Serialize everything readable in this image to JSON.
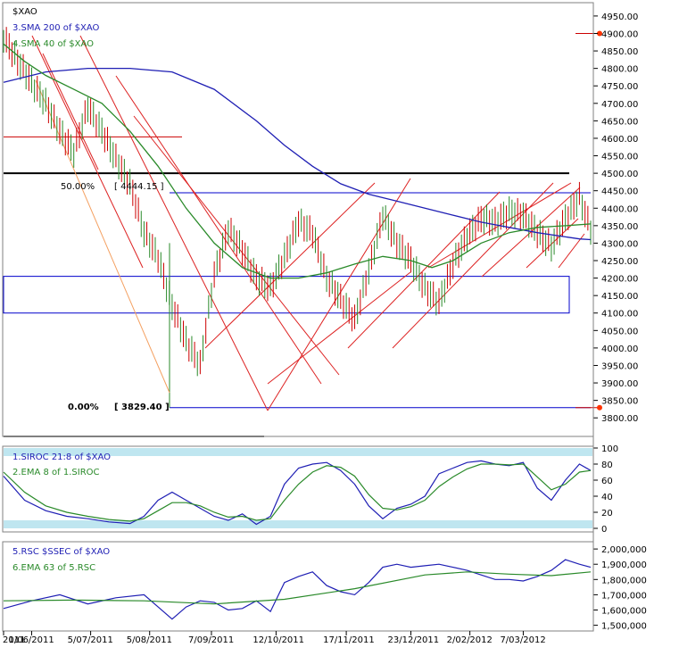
{
  "chart_data": {
    "type": "line",
    "symbol": "$XAO",
    "panels": [
      {
        "id": "price",
        "type": "ohlc",
        "legend": [
          "3.SMA 200  of $XAO",
          "4.SMA 40  of $XAO"
        ],
        "series": [
          {
            "name": "3.SMA 200  of $XAO",
            "color": "#1f1fb4",
            "values": [
              [
                0,
                4760
              ],
              [
                30,
                4790
              ],
              [
                60,
                4800
              ],
              [
                90,
                4800
              ],
              [
                120,
                4790
              ],
              [
                150,
                4740
              ],
              [
                180,
                4650
              ],
              [
                200,
                4580
              ],
              [
                220,
                4520
              ],
              [
                240,
                4470
              ],
              [
                260,
                4440
              ],
              [
                280,
                4420
              ],
              [
                300,
                4400
              ],
              [
                320,
                4380
              ],
              [
                340,
                4360
              ],
              [
                360,
                4345
              ],
              [
                380,
                4330
              ],
              [
                400,
                4318
              ],
              [
                410,
                4312
              ],
              [
                418,
                4310
              ]
            ]
          },
          {
            "name": "4.SMA 40  of $XAO",
            "color": "#2a8a2a",
            "values": [
              [
                0,
                4870
              ],
              [
                15,
                4820
              ],
              [
                30,
                4780
              ],
              [
                50,
                4740
              ],
              [
                70,
                4700
              ],
              [
                90,
                4620
              ],
              [
                110,
                4520
              ],
              [
                130,
                4400
              ],
              [
                150,
                4300
              ],
              [
                170,
                4230
              ],
              [
                190,
                4200
              ],
              [
                210,
                4200
              ],
              [
                230,
                4215
              ],
              [
                250,
                4240
              ],
              [
                270,
                4262
              ],
              [
                290,
                4250
              ],
              [
                305,
                4230
              ],
              [
                320,
                4250
              ],
              [
                340,
                4300
              ],
              [
                360,
                4330
              ],
              [
                380,
                4345
              ],
              [
                400,
                4350
              ],
              [
                418,
                4355
              ]
            ]
          }
        ],
        "close": [
          [
            0,
            4890
          ],
          [
            10,
            4820
          ],
          [
            20,
            4760
          ],
          [
            30,
            4700
          ],
          [
            40,
            4620
          ],
          [
            50,
            4560
          ],
          [
            60,
            4690
          ],
          [
            70,
            4620
          ],
          [
            80,
            4540
          ],
          [
            90,
            4470
          ],
          [
            100,
            4330
          ],
          [
            110,
            4260
          ],
          [
            120,
            4120
          ],
          [
            130,
            4020
          ],
          [
            140,
            3950
          ],
          [
            150,
            4210
          ],
          [
            160,
            4340
          ],
          [
            170,
            4280
          ],
          [
            180,
            4200
          ],
          [
            190,
            4170
          ],
          [
            200,
            4260
          ],
          [
            210,
            4360
          ],
          [
            220,
            4330
          ],
          [
            230,
            4200
          ],
          [
            240,
            4140
          ],
          [
            250,
            4080
          ],
          [
            260,
            4220
          ],
          [
            270,
            4380
          ],
          [
            280,
            4300
          ],
          [
            290,
            4250
          ],
          [
            300,
            4170
          ],
          [
            310,
            4130
          ],
          [
            320,
            4240
          ],
          [
            330,
            4320
          ],
          [
            340,
            4370
          ],
          [
            350,
            4360
          ],
          [
            360,
            4390
          ],
          [
            370,
            4380
          ],
          [
            380,
            4330
          ],
          [
            390,
            4290
          ],
          [
            400,
            4370
          ],
          [
            410,
            4430
          ],
          [
            418,
            4340
          ]
        ],
        "ylim": [
          3775,
          4960
        ],
        "yticks": [
          "4950.00",
          "4900.00",
          "4850.00",
          "4800.00",
          "4750.00",
          "4700.00",
          "4650.00",
          "4600.00",
          "4550.00",
          "4500.00",
          "4450.00",
          "4400.00",
          "4350.00",
          "4300.00",
          "4250.00",
          "4200.00",
          "4150.00",
          "4100.00",
          "4050.00",
          "4000.00",
          "3950.00",
          "3900.00",
          "3850.00",
          "3800.00"
        ],
        "annotations": [
          {
            "pct": "50.00%",
            "value": "[ 4444.15 ]"
          },
          {
            "pct": "0.00%",
            "value": "[ 3829.40 ]"
          }
        ],
        "hlines": [
          4500,
          4444.15,
          4604
        ],
        "box": [
          4100,
          4205
        ],
        "markers": [
          4900,
          3829.4
        ]
      },
      {
        "id": "siroc",
        "legend": [
          "1.SIROC 21:8  of $XAO",
          "2.EMA 8  of 1.SIROC"
        ],
        "ylim": [
          0,
          100
        ],
        "yticks": [
          "100",
          "80",
          "60",
          "40",
          "20",
          "0"
        ],
        "series": [
          {
            "name": "1.SIROC 21:8  of $XAO",
            "color": "#1f1fb4",
            "values": [
              [
                0,
                65
              ],
              [
                15,
                35
              ],
              [
                30,
                22
              ],
              [
                45,
                15
              ],
              [
                60,
                12
              ],
              [
                75,
                8
              ],
              [
                90,
                6
              ],
              [
                100,
                15
              ],
              [
                110,
                35
              ],
              [
                120,
                45
              ],
              [
                130,
                35
              ],
              [
                140,
                25
              ],
              [
                150,
                15
              ],
              [
                160,
                10
              ],
              [
                170,
                18
              ],
              [
                180,
                5
              ],
              [
                190,
                15
              ],
              [
                200,
                55
              ],
              [
                210,
                75
              ],
              [
                220,
                80
              ],
              [
                230,
                82
              ],
              [
                240,
                72
              ],
              [
                250,
                55
              ],
              [
                260,
                28
              ],
              [
                270,
                12
              ],
              [
                280,
                25
              ],
              [
                290,
                30
              ],
              [
                300,
                40
              ],
              [
                310,
                68
              ],
              [
                320,
                75
              ],
              [
                330,
                82
              ],
              [
                340,
                84
              ],
              [
                350,
                80
              ],
              [
                360,
                78
              ],
              [
                370,
                82
              ],
              [
                380,
                50
              ],
              [
                390,
                35
              ],
              [
                400,
                60
              ],
              [
                410,
                80
              ],
              [
                418,
                72
              ]
            ]
          },
          {
            "name": "2.EMA 8  of 1.SIROC",
            "color": "#2a8a2a",
            "values": [
              [
                0,
                70
              ],
              [
                15,
                45
              ],
              [
                30,
                28
              ],
              [
                45,
                20
              ],
              [
                60,
                15
              ],
              [
                75,
                11
              ],
              [
                90,
                9
              ],
              [
                100,
                12
              ],
              [
                110,
                22
              ],
              [
                120,
                32
              ],
              [
                130,
                32
              ],
              [
                140,
                28
              ],
              [
                150,
                20
              ],
              [
                160,
                14
              ],
              [
                170,
                15
              ],
              [
                180,
                10
              ],
              [
                190,
                12
              ],
              [
                200,
                35
              ],
              [
                210,
                55
              ],
              [
                220,
                70
              ],
              [
                230,
                78
              ],
              [
                240,
                76
              ],
              [
                250,
                65
              ],
              [
                260,
                42
              ],
              [
                270,
                25
              ],
              [
                280,
                23
              ],
              [
                290,
                27
              ],
              [
                300,
                35
              ],
              [
                310,
                52
              ],
              [
                320,
                64
              ],
              [
                330,
                74
              ],
              [
                340,
                80
              ],
              [
                350,
                80
              ],
              [
                360,
                79
              ],
              [
                370,
                80
              ],
              [
                380,
                64
              ],
              [
                390,
                48
              ],
              [
                400,
                55
              ],
              [
                410,
                70
              ],
              [
                418,
                72
              ]
            ]
          }
        ]
      },
      {
        "id": "rsc",
        "legend": [
          "5.RSC  $SSEC of $XAO",
          "6.EMA 63  of 5.RSC"
        ],
        "ylim": [
          1480000,
          2030000
        ],
        "yticks": [
          "2,000,000",
          "1,900,000",
          "1,800,000",
          "1,700,000",
          "1,600,000",
          "1,500,000"
        ],
        "series": [
          {
            "name": "5.RSC  $SSEC of $XAO",
            "color": "#1f1fb4",
            "values": [
              [
                0,
                1610
              ],
              [
                20,
                1660
              ],
              [
                40,
                1700
              ],
              [
                60,
                1640
              ],
              [
                80,
                1680
              ],
              [
                100,
                1700
              ],
              [
                110,
                1620
              ],
              [
                120,
                1540
              ],
              [
                130,
                1620
              ],
              [
                140,
                1660
              ],
              [
                150,
                1650
              ],
              [
                160,
                1600
              ],
              [
                170,
                1610
              ],
              [
                180,
                1660
              ],
              [
                190,
                1590
              ],
              [
                200,
                1780
              ],
              [
                210,
                1820
              ],
              [
                220,
                1850
              ],
              [
                230,
                1760
              ],
              [
                240,
                1720
              ],
              [
                250,
                1700
              ],
              [
                260,
                1780
              ],
              [
                270,
                1880
              ],
              [
                280,
                1900
              ],
              [
                290,
                1880
              ],
              [
                300,
                1890
              ],
              [
                310,
                1900
              ],
              [
                320,
                1880
              ],
              [
                330,
                1860
              ],
              [
                340,
                1830
              ],
              [
                350,
                1800
              ],
              [
                360,
                1800
              ],
              [
                370,
                1790
              ],
              [
                380,
                1820
              ],
              [
                390,
                1860
              ],
              [
                400,
                1930
              ],
              [
                410,
                1900
              ],
              [
                418,
                1880
              ]
            ]
          },
          {
            "name": "6.EMA 63  of 5.RSC",
            "color": "#2a8a2a",
            "values": [
              [
                0,
                1660
              ],
              [
                50,
                1665
              ],
              [
                100,
                1660
              ],
              [
                150,
                1640
              ],
              [
                200,
                1670
              ],
              [
                250,
                1740
              ],
              [
                300,
                1830
              ],
              [
                330,
                1850
              ],
              [
                360,
                1835
              ],
              [
                390,
                1825
              ],
              [
                418,
                1850
              ]
            ]
          }
        ]
      }
    ],
    "x_ticks": [
      "2011",
      "1/06/2011",
      "5/07/2011",
      "5/08/2011",
      "7/09/2011",
      "12/10/2011",
      "17/11/2011",
      "23/12/2011",
      "2/02/2012",
      "7/03/2012"
    ],
    "x_tick_index": [
      0,
      20,
      62,
      104,
      148,
      194,
      244,
      290,
      332,
      370
    ]
  }
}
